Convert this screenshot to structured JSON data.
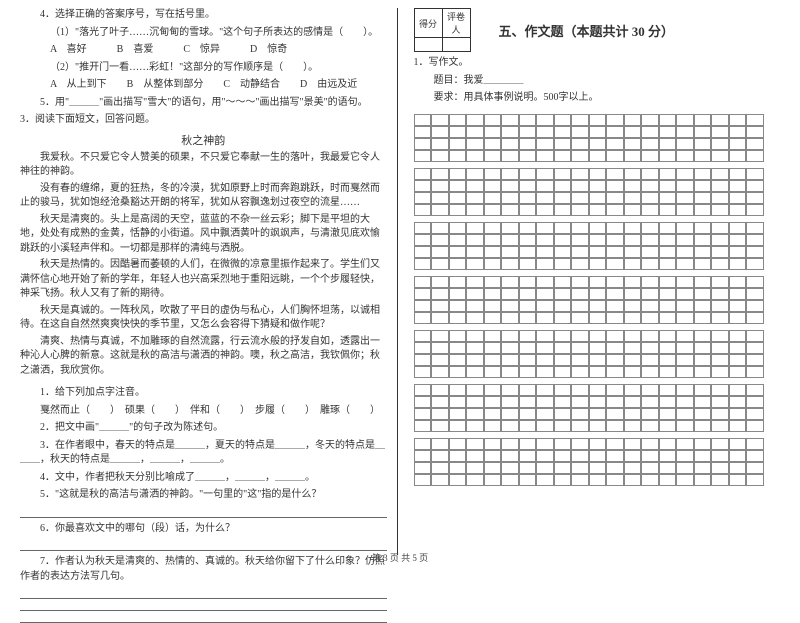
{
  "left": {
    "q4": {
      "stem": "4．选择正确的答案序号，写在括号里。",
      "item1": "（1）\"落光了叶子……沉甸甸的雪球。\"这个句子所表达的感情是（　　）。",
      "opts1": "A　喜好　　　B　喜爱　　　C　惊异　　　D　惊奇",
      "item2": "（2）\"推开门一看……彩虹！\"这部分的写作顺序是（　　）。",
      "opts2": "A　从上到下　　B　从整体到部分　　C　动静结合　　D　由远及近",
      "q5": "5．用\"＿＿＿\"画出描写\"雪大\"的语句，用\"～～～\"画出描写\"景美\"的语句。"
    },
    "reading": {
      "head": "3．阅读下面短文，回答问题。",
      "title": "秋之神韵",
      "p1": "我爱秋。不只爱它令人赞美的硕果，不只爱它奉献一生的落叶，我最爱它令人神往的神韵。",
      "p2": "没有春的缠绵，夏的狂热，冬的冷漠，犹如原野上时而奔跑跳跃，时而戛然而止的骏马，犹如饱经沧桑豁达开朗的将军，犹如从容飘逸划过夜空的流星……",
      "p3": "秋天是清爽的。头上是高阔的天空，蓝蓝的不杂一丝云彩；脚下是平坦的大地，处处有成熟的金黄，恬静的小街道。风中飘洒黄叶的飒飒声，与清澈见底欢愉跳跃的小溪轻声伴和。一切都是那样的清纯与洒脱。",
      "p4": "秋天是热情的。因酷暑而萎顿的人们，在微微的凉意里振作起来了。学生们又满怀信心地开始了新的学年，年轻人也兴高采烈地于重阳远眺，一个个步履轻快，神采飞扬。秋人又有了新的期待。",
      "p5": "秋天是真诚的。一阵秋风，吹散了平日的虚伪与私心，人们胸怀坦荡，以诚相待。在这自自然然爽爽快快的季节里，又怎么会容得下猜疑和做作呢？",
      "p6": "清爽、热情与真诚，不加雕琢的自然流露，行云流水般的抒发自如，透露出一种沁人心脾的新意。这就是秋的高洁与潇洒的神韵。噢，秋之高洁，我钦佩你；秋之潇洒，我欣赏你。",
      "sub1_head": "1．给下列加点字注音。",
      "sub1_words": "戛然而止（　　）　硕果（　　）　伴和（　　）　步履（　　）　雕琢（　　）",
      "sub2": "2．把文中画\"＿＿＿\"的句子改为陈述句。",
      "sub3": "3．在作者眼中，春天的特点是＿＿＿，夏天的特点是＿＿＿，冬天的特点是＿＿＿，秋天的特点是＿＿＿，＿＿＿，＿＿＿。",
      "sub4": "4．文中，作者把秋天分别比喻成了＿＿＿，＿＿＿，＿＿＿。",
      "sub5": "5．\"这就是秋的高洁与潇洒的神韵。\"一句里的\"这\"指的是什么？",
      "sub6": "6．你最喜欢文中的哪句（段）话，为什么？",
      "sub7": "7．作者认为秋天是清爽的、热情的、真诚的。秋天给你留下了什么印象？仿照作者的表达方法写几句。"
    }
  },
  "right": {
    "score_labels": {
      "score": "得分",
      "marker": "评卷人"
    },
    "section": "五、作文题（本题共计 30 分）",
    "essay": {
      "q": "1．写作文。",
      "topic": "题目：我爱＿＿＿＿",
      "req": "要求：用具体事例说明。500字以上。"
    },
    "grid": {
      "cols": 20,
      "blocks": 7,
      "rows_per_block": 4,
      "cell_border": "#888888"
    }
  },
  "footer": "第 3 页 共 5 页"
}
